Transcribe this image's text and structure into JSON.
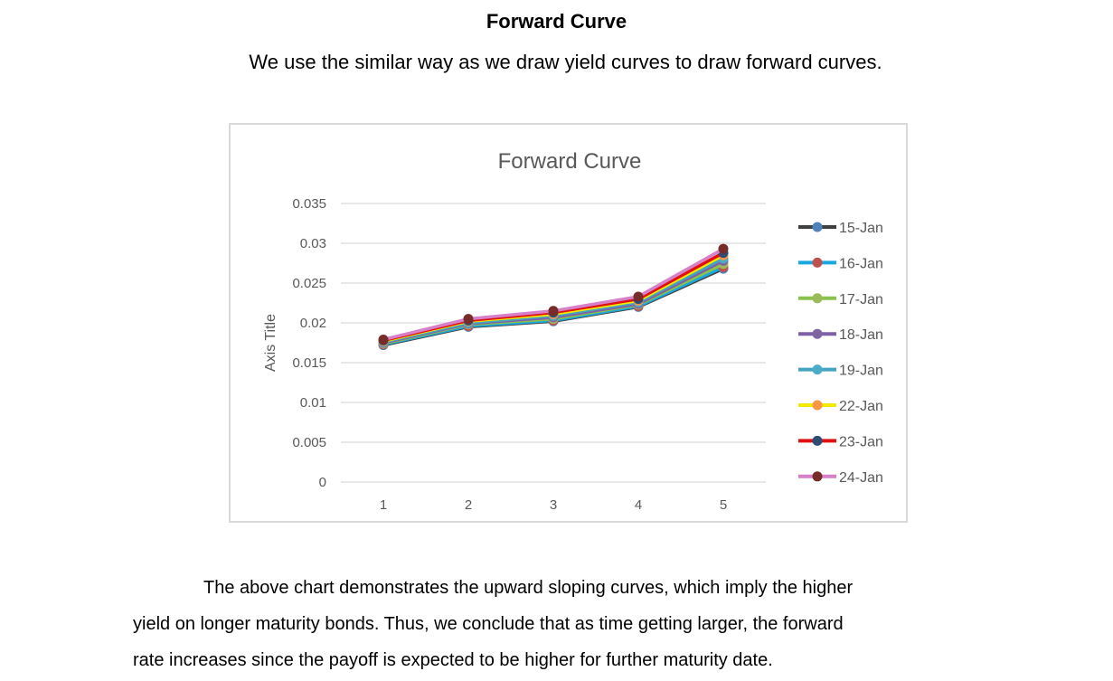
{
  "heading": "Forward Curve",
  "intro": "We use the similar way as we draw yield curves to draw forward curves.",
  "paragraph": {
    "line1": "The above chart demonstrates the upward sloping curves, which imply the higher",
    "line2": "yield on longer maturity bonds. Thus, we conclude that as time getting larger, the forward",
    "line3": "rate increases since the payoff is expected to be higher for further maturity date."
  },
  "chart_data": {
    "type": "line",
    "title": "Forward Curve",
    "ylabel": "Axis Title",
    "xlabel": "",
    "x": [
      1,
      2,
      3,
      4,
      5
    ],
    "ylim": [
      0,
      0.035
    ],
    "yticks": [
      "0",
      "0.005",
      "0.01",
      "0.015",
      "0.02",
      "0.025",
      "0.03",
      "0.035"
    ],
    "grid": true,
    "legend": "right",
    "series": [
      {
        "name": "15-Jan",
        "line_color": "#404040",
        "marker_color": "#4f81bd",
        "values": [
          0.0172,
          0.0195,
          0.0202,
          0.022,
          0.0268
        ]
      },
      {
        "name": "16-Jan",
        "line_color": "#1aa7dd",
        "marker_color": "#c0504d",
        "values": [
          0.0173,
          0.0196,
          0.0203,
          0.0221,
          0.027
        ]
      },
      {
        "name": "17-Jan",
        "line_color": "#8bc34a",
        "marker_color": "#9bbb59",
        "values": [
          0.0174,
          0.0198,
          0.0205,
          0.0223,
          0.0274
        ]
      },
      {
        "name": "18-Jan",
        "line_color": "#7f5fa8",
        "marker_color": "#8064a2",
        "values": [
          0.0175,
          0.0199,
          0.0207,
          0.0224,
          0.0278
        ]
      },
      {
        "name": "19-Jan",
        "line_color": "#43a3c1",
        "marker_color": "#4bacc6",
        "values": [
          0.0176,
          0.02,
          0.0209,
          0.0226,
          0.0281
        ]
      },
      {
        "name": "22-Jan",
        "line_color": "#f4ea00",
        "marker_color": "#f79646",
        "values": [
          0.0177,
          0.0202,
          0.0211,
          0.0228,
          0.0285
        ]
      },
      {
        "name": "23-Jan",
        "line_color": "#e01010",
        "marker_color": "#2c4d75",
        "values": [
          0.0178,
          0.0203,
          0.0213,
          0.023,
          0.0288
        ]
      },
      {
        "name": "24-Jan",
        "line_color": "#d77fc8",
        "marker_color": "#772c2a",
        "values": [
          0.0179,
          0.0205,
          0.0215,
          0.0233,
          0.0293
        ]
      }
    ]
  }
}
